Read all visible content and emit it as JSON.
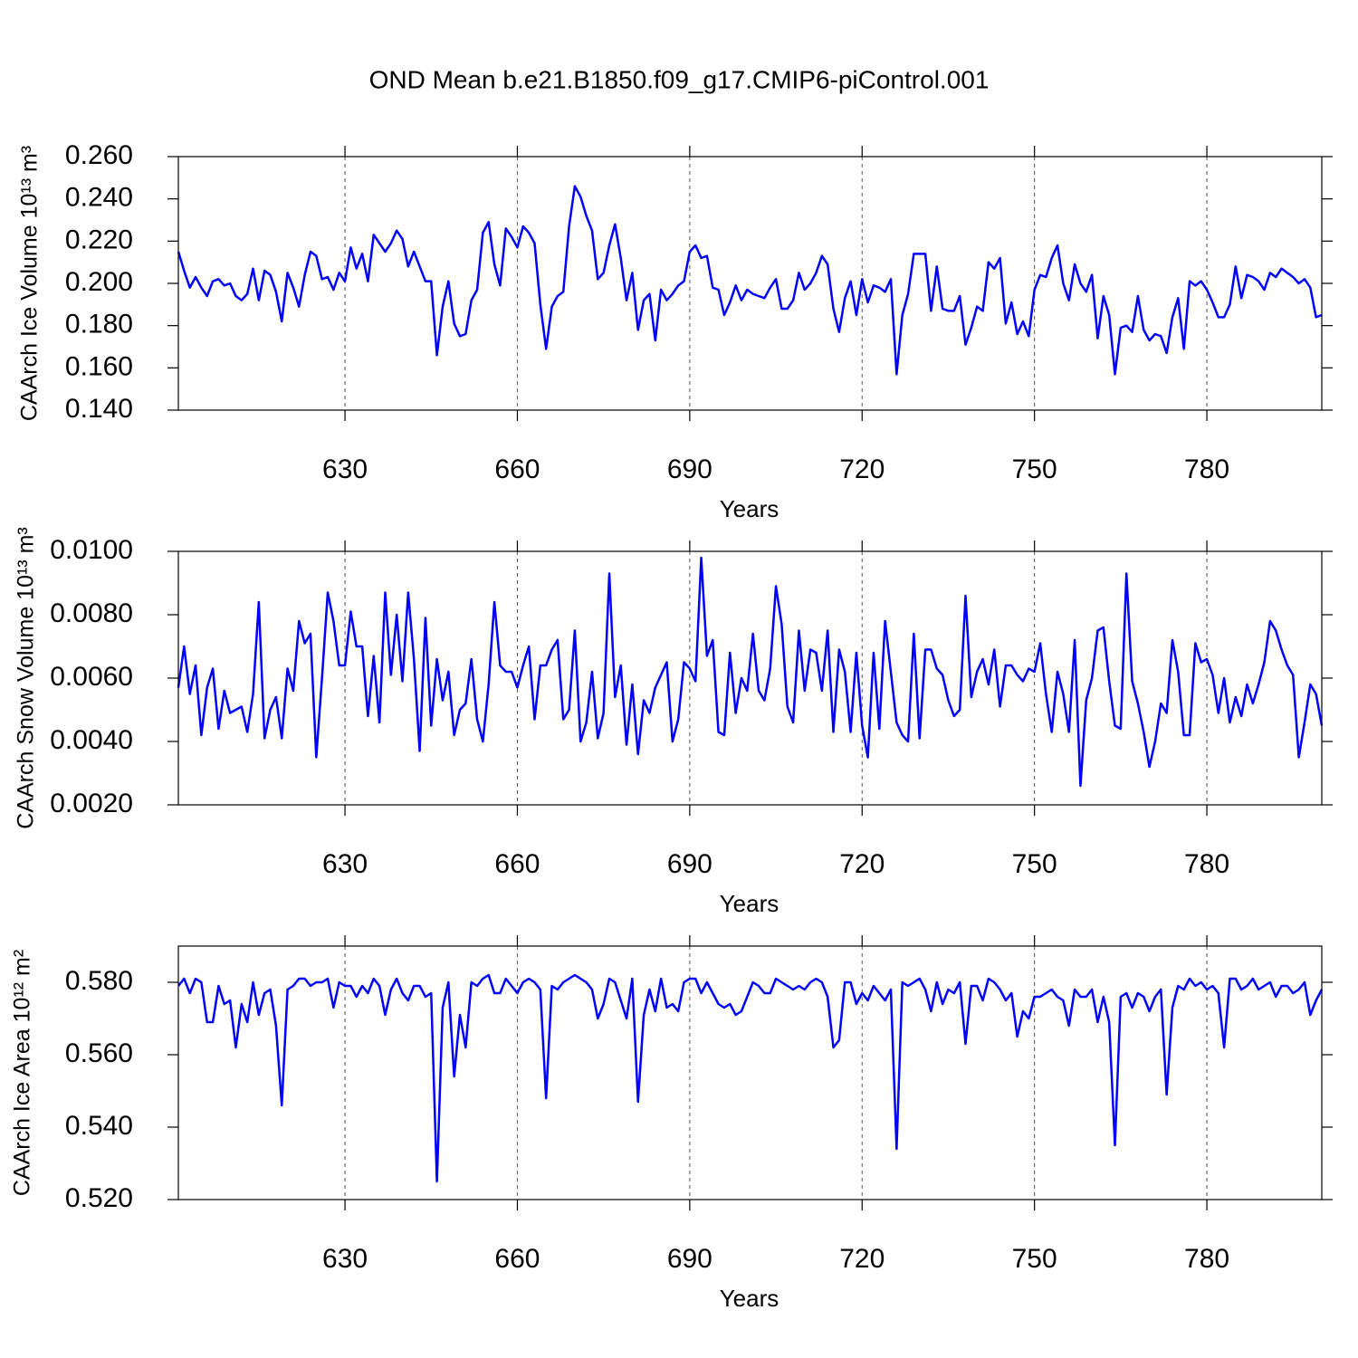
{
  "chart_data": [
    {
      "type": "line",
      "title": "OND Mean b.e21.B1850.f09_g17.CMIP6-piControl.001",
      "xlabel": "Years",
      "ylabel": "CAArch Ice Volume 10¹³ m³",
      "color": "#0000ff",
      "x": [
        601,
        602,
        603,
        604,
        605,
        606,
        607,
        608,
        609,
        610,
        611,
        612,
        613,
        614,
        615,
        616,
        617,
        618,
        619,
        620,
        621,
        622,
        623,
        624,
        625,
        626,
        627,
        628,
        629,
        630,
        631,
        632,
        633,
        634,
        635,
        636,
        637,
        638,
        639,
        640,
        641,
        642,
        643,
        644,
        645,
        646,
        647,
        648,
        649,
        650,
        651,
        652,
        653,
        654,
        655,
        656,
        657,
        658,
        659,
        660,
        661,
        662,
        663,
        664,
        665,
        666,
        667,
        668,
        669,
        670,
        671,
        672,
        673,
        674,
        675,
        676,
        677,
        678,
        679,
        680,
        681,
        682,
        683,
        684,
        685,
        686,
        687,
        688,
        689,
        690,
        691,
        692,
        693,
        694,
        695,
        696,
        697,
        698,
        699,
        700,
        701,
        702,
        703,
        704,
        705,
        706,
        707,
        708,
        709,
        710,
        711,
        712,
        713,
        714,
        715,
        716,
        717,
        718,
        719,
        720,
        721,
        722,
        723,
        724,
        725,
        726,
        727,
        728,
        729,
        730,
        731,
        732,
        733,
        734,
        735,
        736,
        737,
        738,
        739,
        740,
        741,
        742,
        743,
        744,
        745,
        746,
        747,
        748,
        749,
        750,
        751,
        752,
        753,
        754,
        755,
        756,
        757,
        758,
        759,
        760,
        761,
        762,
        763,
        764,
        765,
        766,
        767,
        768,
        769,
        770,
        771,
        772,
        773,
        774,
        775,
        776,
        777,
        778,
        779,
        780,
        781,
        782,
        783,
        784,
        785,
        786,
        787,
        788,
        789,
        790,
        791,
        792,
        793,
        794,
        795,
        796,
        797,
        798,
        799,
        800
      ],
      "values": [
        0.215,
        0.206,
        0.198,
        0.203,
        0.198,
        0.194,
        0.201,
        0.202,
        0.199,
        0.2,
        0.194,
        0.192,
        0.195,
        0.207,
        0.192,
        0.206,
        0.204,
        0.196,
        0.182,
        0.205,
        0.198,
        0.189,
        0.204,
        0.215,
        0.213,
        0.202,
        0.203,
        0.197,
        0.205,
        0.201,
        0.217,
        0.207,
        0.214,
        0.201,
        0.223,
        0.219,
        0.215,
        0.219,
        0.225,
        0.221,
        0.208,
        0.215,
        0.208,
        0.201,
        0.201,
        0.166,
        0.189,
        0.201,
        0.181,
        0.175,
        0.176,
        0.192,
        0.197,
        0.224,
        0.229,
        0.209,
        0.199,
        0.226,
        0.222,
        0.217,
        0.227,
        0.224,
        0.219,
        0.19,
        0.169,
        0.189,
        0.194,
        0.196,
        0.227,
        0.246,
        0.241,
        0.232,
        0.225,
        0.202,
        0.205,
        0.218,
        0.228,
        0.212,
        0.192,
        0.205,
        0.178,
        0.192,
        0.195,
        0.173,
        0.197,
        0.192,
        0.195,
        0.199,
        0.201,
        0.215,
        0.218,
        0.212,
        0.213,
        0.198,
        0.197,
        0.185,
        0.191,
        0.199,
        0.192,
        0.197,
        0.195,
        0.194,
        0.193,
        0.198,
        0.202,
        0.188,
        0.188,
        0.192,
        0.205,
        0.197,
        0.2,
        0.205,
        0.213,
        0.209,
        0.188,
        0.177,
        0.193,
        0.201,
        0.185,
        0.202,
        0.191,
        0.199,
        0.198,
        0.196,
        0.202,
        0.157,
        0.185,
        0.195,
        0.214,
        0.214,
        0.214,
        0.187,
        0.208,
        0.188,
        0.187,
        0.187,
        0.194,
        0.171,
        0.179,
        0.189,
        0.187,
        0.21,
        0.207,
        0.212,
        0.181,
        0.191,
        0.176,
        0.182,
        0.175,
        0.197,
        0.204,
        0.203,
        0.212,
        0.218,
        0.2,
        0.192,
        0.209,
        0.2,
        0.196,
        0.204,
        0.174,
        0.194,
        0.185,
        0.157,
        0.179,
        0.18,
        0.177,
        0.194,
        0.178,
        0.173,
        0.176,
        0.175,
        0.167,
        0.184,
        0.193,
        0.169,
        0.201,
        0.199,
        0.201,
        0.197,
        0.191,
        0.184,
        0.184,
        0.19,
        0.208,
        0.193,
        0.204,
        0.203,
        0.201,
        0.197,
        0.205,
        0.203,
        0.207,
        0.205,
        0.203,
        0.2,
        0.202,
        0.198,
        0.184,
        0.185
      ],
      "xlim": [
        601,
        800
      ],
      "xticks": [
        630,
        660,
        690,
        720,
        750,
        780
      ],
      "xgrid": true,
      "ylim": [
        0.14,
        0.26
      ],
      "yticks": [
        {
          "value": 0.14,
          "label": "0.140"
        },
        {
          "value": 0.16,
          "label": "0.160"
        },
        {
          "value": 0.18,
          "label": "0.180"
        },
        {
          "value": 0.2,
          "label": "0.200"
        },
        {
          "value": 0.22,
          "label": "0.220"
        },
        {
          "value": 0.24,
          "label": "0.240"
        },
        {
          "value": 0.26,
          "label": "0.260"
        }
      ]
    },
    {
      "type": "line",
      "xlabel": "Years",
      "ylabel": "CAArch Snow Volume 10¹³ m³",
      "color": "#0000ff",
      "x": [
        601,
        602,
        603,
        604,
        605,
        606,
        607,
        608,
        609,
        610,
        611,
        612,
        613,
        614,
        615,
        616,
        617,
        618,
        619,
        620,
        621,
        622,
        623,
        624,
        625,
        626,
        627,
        628,
        629,
        630,
        631,
        632,
        633,
        634,
        635,
        636,
        637,
        638,
        639,
        640,
        641,
        642,
        643,
        644,
        645,
        646,
        647,
        648,
        649,
        650,
        651,
        652,
        653,
        654,
        655,
        656,
        657,
        658,
        659,
        660,
        661,
        662,
        663,
        664,
        665,
        666,
        667,
        668,
        669,
        670,
        671,
        672,
        673,
        674,
        675,
        676,
        677,
        678,
        679,
        680,
        681,
        682,
        683,
        684,
        685,
        686,
        687,
        688,
        689,
        690,
        691,
        692,
        693,
        694,
        695,
        696,
        697,
        698,
        699,
        700,
        701,
        702,
        703,
        704,
        705,
        706,
        707,
        708,
        709,
        710,
        711,
        712,
        713,
        714,
        715,
        716,
        717,
        718,
        719,
        720,
        721,
        722,
        723,
        724,
        725,
        726,
        727,
        728,
        729,
        730,
        731,
        732,
        733,
        734,
        735,
        736,
        737,
        738,
        739,
        740,
        741,
        742,
        743,
        744,
        745,
        746,
        747,
        748,
        749,
        750,
        751,
        752,
        753,
        754,
        755,
        756,
        757,
        758,
        759,
        760,
        761,
        762,
        763,
        764,
        765,
        766,
        767,
        768,
        769,
        770,
        771,
        772,
        773,
        774,
        775,
        776,
        777,
        778,
        779,
        780,
        781,
        782,
        783,
        784,
        785,
        786,
        787,
        788,
        789,
        790,
        791,
        792,
        793,
        794,
        795,
        796,
        797,
        798,
        799,
        800
      ],
      "values": [
        0.0057,
        0.007,
        0.0055,
        0.0064,
        0.0042,
        0.0057,
        0.0063,
        0.0044,
        0.0056,
        0.0049,
        0.005,
        0.0051,
        0.0043,
        0.0055,
        0.0084,
        0.0041,
        0.005,
        0.0054,
        0.0041,
        0.0063,
        0.0056,
        0.0078,
        0.0071,
        0.0074,
        0.0035,
        0.006,
        0.0087,
        0.0078,
        0.0064,
        0.0064,
        0.0081,
        0.007,
        0.007,
        0.0048,
        0.0067,
        0.0046,
        0.0087,
        0.0061,
        0.008,
        0.0059,
        0.0087,
        0.0066,
        0.0037,
        0.0079,
        0.0045,
        0.0066,
        0.0053,
        0.0062,
        0.0042,
        0.005,
        0.0052,
        0.0066,
        0.0047,
        0.004,
        0.0058,
        0.0084,
        0.0064,
        0.0062,
        0.0062,
        0.0057,
        0.0064,
        0.007,
        0.0047,
        0.0064,
        0.0064,
        0.0069,
        0.0072,
        0.0047,
        0.005,
        0.0075,
        0.004,
        0.0046,
        0.0062,
        0.0041,
        0.0049,
        0.0093,
        0.0054,
        0.0064,
        0.0039,
        0.0058,
        0.0036,
        0.0053,
        0.0049,
        0.0057,
        0.0061,
        0.0065,
        0.004,
        0.0047,
        0.0065,
        0.0063,
        0.0059,
        0.0098,
        0.0067,
        0.0072,
        0.0043,
        0.0042,
        0.0068,
        0.0049,
        0.006,
        0.0056,
        0.0074,
        0.0056,
        0.0053,
        0.0063,
        0.0089,
        0.0077,
        0.0051,
        0.0046,
        0.0075,
        0.0056,
        0.0069,
        0.0068,
        0.0056,
        0.0075,
        0.0043,
        0.0069,
        0.0062,
        0.0043,
        0.0068,
        0.0045,
        0.0035,
        0.0068,
        0.0044,
        0.0078,
        0.0062,
        0.0046,
        0.0042,
        0.004,
        0.0074,
        0.0041,
        0.0069,
        0.0069,
        0.0063,
        0.0061,
        0.0053,
        0.0048,
        0.005,
        0.0086,
        0.0054,
        0.0062,
        0.0066,
        0.0058,
        0.0069,
        0.0051,
        0.0064,
        0.0064,
        0.0061,
        0.0059,
        0.0063,
        0.0062,
        0.0071,
        0.0055,
        0.0043,
        0.0062,
        0.0055,
        0.0043,
        0.0072,
        0.0026,
        0.0053,
        0.006,
        0.0075,
        0.0076,
        0.0059,
        0.0045,
        0.0044,
        0.0093,
        0.0059,
        0.0052,
        0.0043,
        0.0032,
        0.004,
        0.0052,
        0.0049,
        0.0072,
        0.0062,
        0.0042,
        0.0042,
        0.0071,
        0.0065,
        0.0066,
        0.0061,
        0.0049,
        0.006,
        0.0046,
        0.0054,
        0.0048,
        0.0058,
        0.0052,
        0.0058,
        0.0065,
        0.0078,
        0.0075,
        0.0069,
        0.0064,
        0.0061,
        0.0035,
        0.0046,
        0.0058,
        0.0055,
        0.0045
      ],
      "xlim": [
        601,
        800
      ],
      "xticks": [
        630,
        660,
        690,
        720,
        750,
        780
      ],
      "xgrid": true,
      "ylim": [
        0.002,
        0.01
      ],
      "yticks": [
        {
          "value": 0.002,
          "label": "0.0020"
        },
        {
          "value": 0.004,
          "label": "0.0040"
        },
        {
          "value": 0.006,
          "label": "0.0060"
        },
        {
          "value": 0.008,
          "label": "0.0080"
        },
        {
          "value": 0.01,
          "label": "0.0100"
        }
      ]
    },
    {
      "type": "line",
      "xlabel": "Years",
      "ylabel": "CAArch Ice Area 10¹² m²",
      "color": "#0000ff",
      "x": [
        601,
        602,
        603,
        604,
        605,
        606,
        607,
        608,
        609,
        610,
        611,
        612,
        613,
        614,
        615,
        616,
        617,
        618,
        619,
        620,
        621,
        622,
        623,
        624,
        625,
        626,
        627,
        628,
        629,
        630,
        631,
        632,
        633,
        634,
        635,
        636,
        637,
        638,
        639,
        640,
        641,
        642,
        643,
        644,
        645,
        646,
        647,
        648,
        649,
        650,
        651,
        652,
        653,
        654,
        655,
        656,
        657,
        658,
        659,
        660,
        661,
        662,
        663,
        664,
        665,
        666,
        667,
        668,
        669,
        670,
        671,
        672,
        673,
        674,
        675,
        676,
        677,
        678,
        679,
        680,
        681,
        682,
        683,
        684,
        685,
        686,
        687,
        688,
        689,
        690,
        691,
        692,
        693,
        694,
        695,
        696,
        697,
        698,
        699,
        700,
        701,
        702,
        703,
        704,
        705,
        706,
        707,
        708,
        709,
        710,
        711,
        712,
        713,
        714,
        715,
        716,
        717,
        718,
        719,
        720,
        721,
        722,
        723,
        724,
        725,
        726,
        727,
        728,
        729,
        730,
        731,
        732,
        733,
        734,
        735,
        736,
        737,
        738,
        739,
        740,
        741,
        742,
        743,
        744,
        745,
        746,
        747,
        748,
        749,
        750,
        751,
        752,
        753,
        754,
        755,
        756,
        757,
        758,
        759,
        760,
        761,
        762,
        763,
        764,
        765,
        766,
        767,
        768,
        769,
        770,
        771,
        772,
        773,
        774,
        775,
        776,
        777,
        778,
        779,
        780,
        781,
        782,
        783,
        784,
        785,
        786,
        787,
        788,
        789,
        790,
        791,
        792,
        793,
        794,
        795,
        796,
        797,
        798,
        799,
        800
      ],
      "values": [
        0.579,
        0.581,
        0.577,
        0.581,
        0.58,
        0.569,
        0.569,
        0.579,
        0.574,
        0.575,
        0.562,
        0.574,
        0.569,
        0.58,
        0.571,
        0.577,
        0.578,
        0.568,
        0.546,
        0.578,
        0.579,
        0.581,
        0.581,
        0.579,
        0.58,
        0.58,
        0.581,
        0.573,
        0.58,
        0.579,
        0.579,
        0.576,
        0.579,
        0.577,
        0.581,
        0.579,
        0.571,
        0.578,
        0.581,
        0.577,
        0.575,
        0.579,
        0.579,
        0.576,
        0.577,
        0.525,
        0.573,
        0.58,
        0.554,
        0.571,
        0.562,
        0.58,
        0.579,
        0.581,
        0.582,
        0.577,
        0.577,
        0.581,
        0.579,
        0.577,
        0.58,
        0.581,
        0.58,
        0.578,
        0.548,
        0.579,
        0.578,
        0.58,
        0.581,
        0.582,
        0.581,
        0.58,
        0.578,
        0.57,
        0.574,
        0.581,
        0.58,
        0.575,
        0.57,
        0.581,
        0.547,
        0.571,
        0.578,
        0.572,
        0.581,
        0.573,
        0.574,
        0.572,
        0.58,
        0.581,
        0.581,
        0.577,
        0.58,
        0.577,
        0.574,
        0.573,
        0.574,
        0.571,
        0.572,
        0.576,
        0.58,
        0.579,
        0.577,
        0.577,
        0.581,
        0.58,
        0.579,
        0.578,
        0.579,
        0.578,
        0.58,
        0.581,
        0.58,
        0.576,
        0.562,
        0.564,
        0.58,
        0.58,
        0.574,
        0.577,
        0.575,
        0.579,
        0.577,
        0.575,
        0.578,
        0.534,
        0.58,
        0.579,
        0.58,
        0.581,
        0.578,
        0.572,
        0.58,
        0.574,
        0.578,
        0.577,
        0.58,
        0.563,
        0.579,
        0.579,
        0.575,
        0.581,
        0.58,
        0.578,
        0.575,
        0.577,
        0.565,
        0.572,
        0.57,
        0.576,
        0.576,
        0.577,
        0.578,
        0.576,
        0.575,
        0.568,
        0.578,
        0.576,
        0.576,
        0.578,
        0.569,
        0.576,
        0.569,
        0.535,
        0.576,
        0.577,
        0.573,
        0.577,
        0.576,
        0.572,
        0.576,
        0.578,
        0.549,
        0.573,
        0.579,
        0.578,
        0.581,
        0.579,
        0.58,
        0.578,
        0.579,
        0.577,
        0.562,
        0.581,
        0.581,
        0.578,
        0.579,
        0.581,
        0.578,
        0.579,
        0.58,
        0.576,
        0.579,
        0.579,
        0.577,
        0.578,
        0.58,
        0.571,
        0.575,
        0.578
      ],
      "xlim": [
        601,
        800
      ],
      "xticks": [
        630,
        660,
        690,
        720,
        750,
        780
      ],
      "xgrid": true,
      "ylim": [
        0.52,
        0.59
      ],
      "yticks": [
        {
          "value": 0.52,
          "label": "0.520"
        },
        {
          "value": 0.54,
          "label": "0.540"
        },
        {
          "value": 0.56,
          "label": "0.560"
        },
        {
          "value": 0.58,
          "label": "0.580"
        }
      ]
    }
  ]
}
